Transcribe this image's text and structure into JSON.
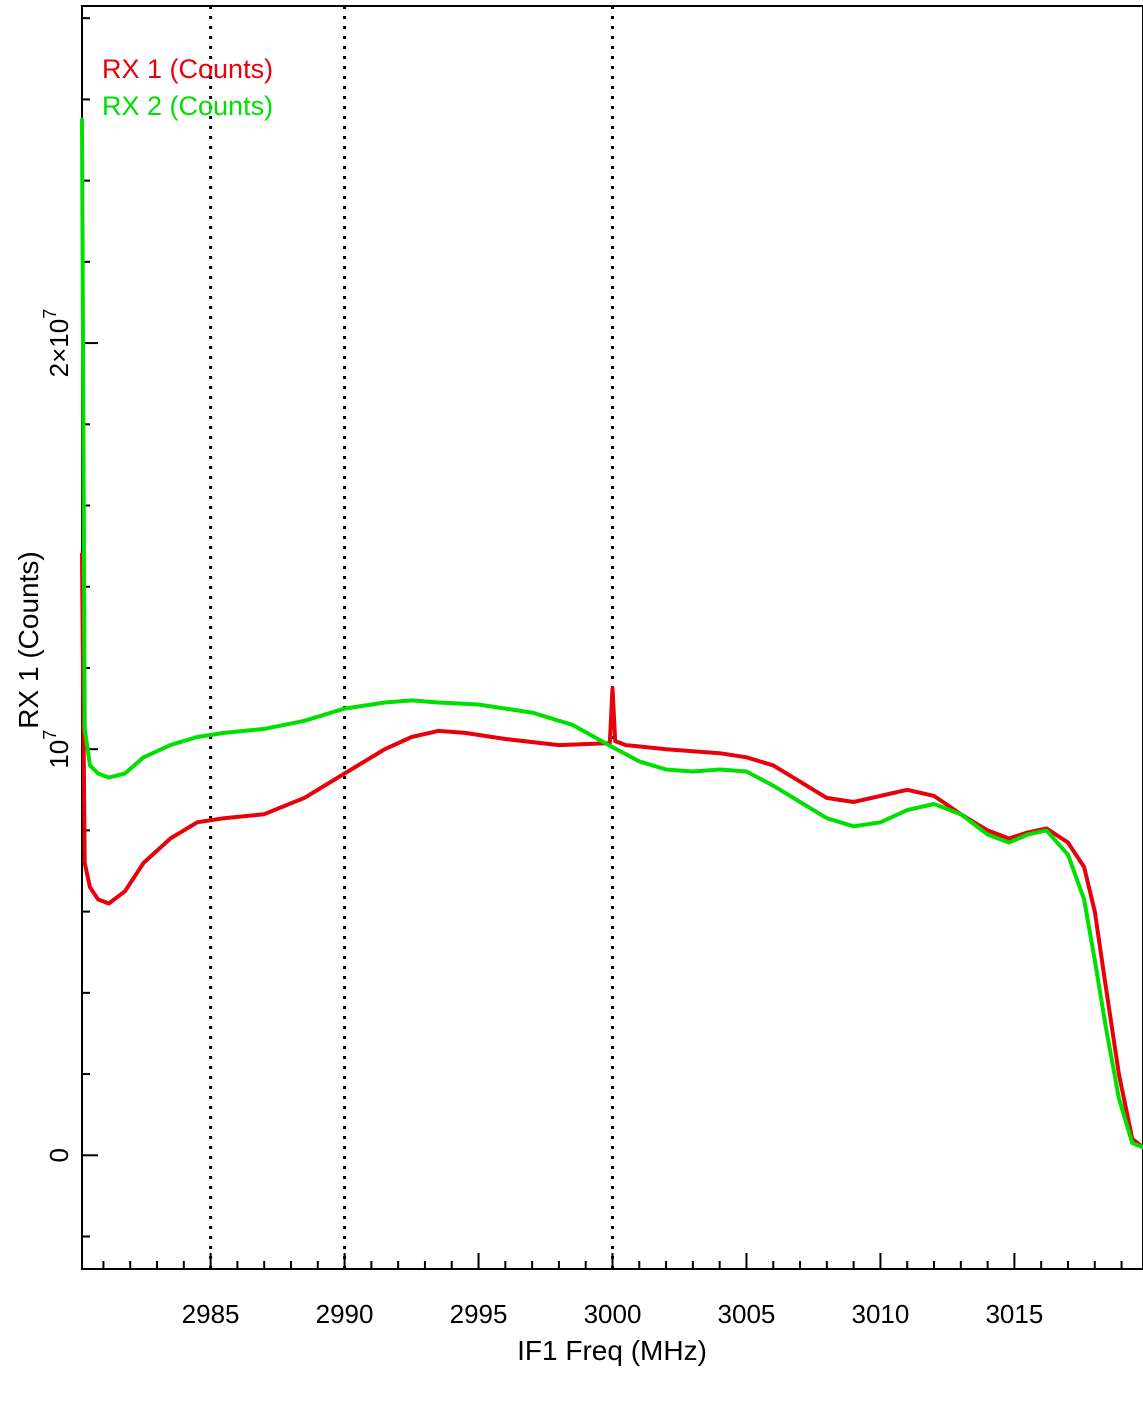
{
  "chart_data": {
    "type": "line",
    "xlabel": "IF1 Freq (MHz)",
    "ylabel": "RX 1 (Counts)",
    "xlim": [
      2980.2,
      3019.8
    ],
    "ylim": [
      -2800000,
      28300000
    ],
    "x_ticks": [
      2985,
      2990,
      2995,
      3000,
      3005,
      3010,
      3015
    ],
    "y_ticks": [
      {
        "value": 0,
        "label": "0"
      },
      {
        "value": 10000000,
        "label": "10",
        "exp": "7"
      },
      {
        "value": 20000000,
        "label": "2×10",
        "exp": "7"
      }
    ],
    "vlines": [
      2985,
      2990,
      3000
    ],
    "grid": false,
    "legend_position": "top-left",
    "series": [
      {
        "name": "RX 1 (Counts)",
        "color": "#e8000b",
        "x": [
          2980.2,
          2980.3,
          2980.5,
          2980.8,
          2981.2,
          2981.8,
          2982.5,
          2983.5,
          2984.5,
          2985.5,
          2987.0,
          2988.5,
          2990.0,
          2991.5,
          2992.5,
          2993.5,
          2994.5,
          2996.0,
          2998.0,
          2999.9,
          3000.0,
          3000.1,
          3000.5,
          3002.0,
          3003.0,
          3004.0,
          3005.0,
          3006.0,
          3007.0,
          3008.0,
          3009.0,
          3010.0,
          3011.0,
          3012.0,
          3013.0,
          3014.0,
          3014.8,
          3015.5,
          3016.2,
          3017.0,
          3017.6,
          3018.0,
          3018.4,
          3018.9,
          3019.4,
          3019.8
        ],
        "y": [
          14800000,
          7200000,
          6600000,
          6300000,
          6200000,
          6500000,
          7200000,
          7800000,
          8200000,
          8300000,
          8400000,
          8800000,
          9400000,
          10000000,
          10300000,
          10450000,
          10400000,
          10250000,
          10100000,
          10150000,
          11500000,
          10200000,
          10100000,
          10000000,
          9950000,
          9900000,
          9800000,
          9600000,
          9200000,
          8800000,
          8700000,
          8850000,
          9000000,
          8850000,
          8400000,
          8000000,
          7800000,
          7950000,
          8050000,
          7700000,
          7100000,
          6000000,
          4200000,
          2000000,
          400000,
          200000
        ]
      },
      {
        "name": "RX 2 (Counts)",
        "color": "#00e000",
        "x": [
          2980.2,
          2980.3,
          2980.5,
          2980.8,
          2981.2,
          2981.8,
          2982.5,
          2983.5,
          2984.5,
          2985.5,
          2987.0,
          2988.5,
          2990.0,
          2991.5,
          2992.5,
          2993.5,
          2995.0,
          2997.0,
          2998.5,
          3000.0,
          3001.0,
          3002.0,
          3003.0,
          3004.0,
          3005.0,
          3006.0,
          3007.0,
          3008.0,
          3009.0,
          3010.0,
          3011.0,
          3012.0,
          3013.0,
          3014.0,
          3014.8,
          3015.5,
          3016.2,
          3017.0,
          3017.6,
          3018.0,
          3018.4,
          3018.9,
          3019.4,
          3019.8
        ],
        "y": [
          25500000,
          10500000,
          9600000,
          9400000,
          9300000,
          9400000,
          9800000,
          10100000,
          10300000,
          10400000,
          10500000,
          10700000,
          11000000,
          11150000,
          11200000,
          11150000,
          11100000,
          10900000,
          10600000,
          10050000,
          9700000,
          9500000,
          9450000,
          9500000,
          9450000,
          9100000,
          8700000,
          8300000,
          8100000,
          8200000,
          8500000,
          8650000,
          8400000,
          7900000,
          7700000,
          7900000,
          8000000,
          7400000,
          6300000,
          4800000,
          3200000,
          1400000,
          300000,
          200000
        ]
      }
    ]
  }
}
